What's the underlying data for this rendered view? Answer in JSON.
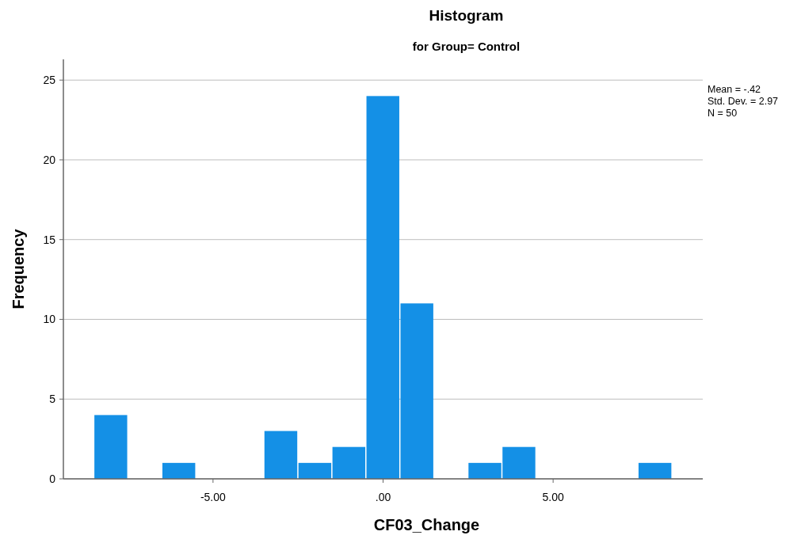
{
  "chart_data": {
    "type": "histogram",
    "title": "Histogram",
    "subtitle": "for Group= Control",
    "xlabel": "CF03_Change",
    "ylabel": "Frequency",
    "bins": [
      -8.5,
      -7.5,
      -6.5,
      -5.5,
      -4.5,
      -3.5,
      -2.5,
      -1.5,
      -0.5,
      0.5,
      1.5,
      2.5,
      3.5,
      4.5,
      5.5,
      6.5,
      7.5,
      8.5
    ],
    "values": [
      4,
      0,
      1,
      0,
      0,
      3,
      1,
      2,
      24,
      11,
      0,
      1,
      2,
      0,
      0,
      0,
      1
    ],
    "color": "#1490e6",
    "xlim": [
      -9.4,
      9.4
    ],
    "xticks": [
      {
        "value": -5,
        "label": "-5.00"
      },
      {
        "value": 0,
        "label": ".00"
      },
      {
        "value": 5,
        "label": "5.00"
      }
    ],
    "ylim": [
      0,
      26.3
    ],
    "yticks": [
      0,
      5,
      10,
      15,
      20,
      25
    ],
    "grid": "y",
    "annotations": [
      "Mean = -.42",
      "Std. Dev. = 2.97",
      "N = 50"
    ]
  }
}
